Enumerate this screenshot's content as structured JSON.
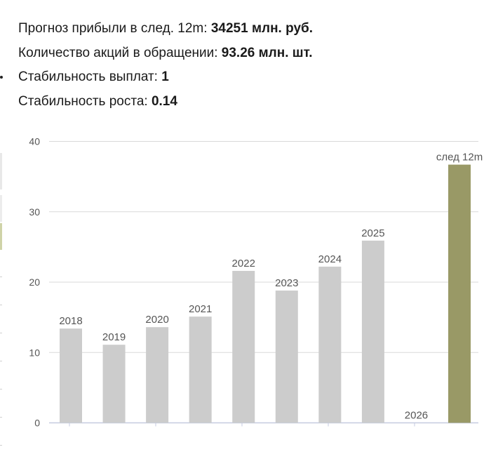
{
  "stats": {
    "profit_label": "Прогноз прибыли в след. 12m: ",
    "profit_value": "34251 млн. руб.",
    "shares_label": "Количество акций в обращении: ",
    "shares_value": "93.26 млн. шт.",
    "payout_label": "Стабильность выплат: ",
    "payout_value": "1",
    "growth_label": "Стабильность роста: ",
    "growth_value": "0.14"
  },
  "chart_data": {
    "type": "bar",
    "categories": [
      "2018",
      "2019",
      "2020",
      "2021",
      "2022",
      "2023",
      "2024",
      "2025",
      "2026",
      "след 12m"
    ],
    "values": [
      13.4,
      11.1,
      13.6,
      15.1,
      21.6,
      18.8,
      22.2,
      25.9,
      0,
      36.7
    ],
    "ylim": [
      0,
      40
    ],
    "yticks": [
      "0",
      "10",
      "20",
      "30",
      "40"
    ],
    "grid": true,
    "colors": {
      "bar": "#cccccc",
      "highlight": "#999966",
      "grid": "#d9d9d9",
      "axis": "#c5cbe0"
    }
  }
}
